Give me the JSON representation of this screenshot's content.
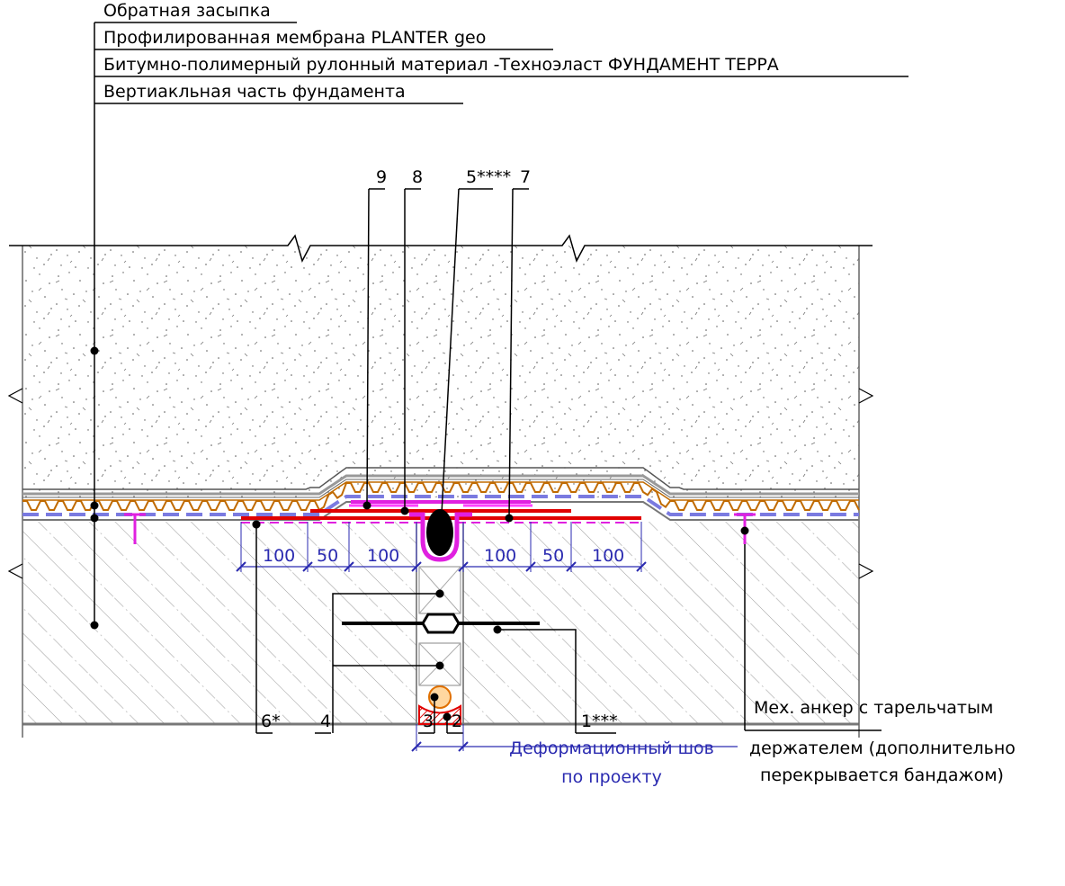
{
  "leader_labels": [
    "Обратная засыпка",
    "Профилированная мембрана PLANTER geo",
    "Битумно-полимерный рулонный материал -Техноэласт ФУНДАМЕНТ ТЕРРА",
    "Вертиакльная часть фундамента"
  ],
  "top_callouts": [
    "9",
    "8",
    "5****",
    "7"
  ],
  "bottom_callouts": [
    "6*",
    "4",
    "3",
    "2",
    "1***"
  ],
  "dimensions": [
    100,
    50,
    100,
    100,
    50,
    100
  ],
  "anchor_note": [
    "Мех. анкер с тарельчатым",
    "держателем (дополнительно",
    "перекрывается бандажом)"
  ],
  "joint_note": [
    "Деформационный шов",
    "по проекту"
  ]
}
